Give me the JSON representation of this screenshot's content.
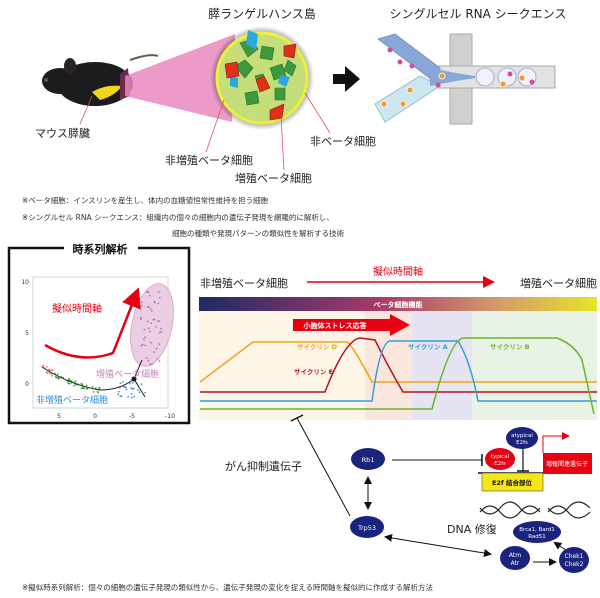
{
  "top": {
    "islet_title": "膵ランゲルハンス島",
    "scrnaseq_title": "シングルセル RNA シークエンス",
    "mouse_label": "マウス膵臓",
    "non_beta_label": "非ベータ細胞",
    "non_prolif_beta_label": "非増殖ベータ細胞",
    "prolif_beta_label": "増殖ベータ細胞"
  },
  "notes": [
    "※ベータ細胞：インスリンを産生し、体内の血糖値恒常性維持を担う細胞",
    "※シングルセル RNA シークエンス：組織内の個々の細胞内の遺伝子発現を網羅的に解析し、",
    "細胞の種類や発現パターンの類似性を解析する技術"
  ],
  "panel": {
    "title": "時系列解析",
    "pseudotime_label": "擬似時間軸",
    "prolif_label": "増殖ベータ細胞",
    "non_prolif_label": "非増殖ベータ細胞",
    "y_ticks": [
      "10",
      "5",
      "0"
    ],
    "x_ticks": [
      "5",
      "0",
      "-5",
      "-10"
    ]
  },
  "timeline": {
    "start_label": "非増殖ベータ細胞",
    "axis_label": "擬似時間軸",
    "end_label": "増殖ベータ細胞",
    "function_bar_label": "ベータ細胞機能",
    "er_stress_label": "小胞体ストレス応答",
    "cyclin_d": "サイクリン D",
    "cyclin_e": "サイクリン E",
    "cyclin_a": "サイクリン A",
    "cyclin_b": "サイクリン B",
    "colors": {
      "cyclin_d": "#f2a31b",
      "cyclin_e": "#b3121c",
      "cyclin_a": "#2fa0dc",
      "cyclin_b": "#6ab42d",
      "gradient_start": "#1f2a63",
      "gradient_mid": "#a63a6a",
      "gradient_end": "#e6e42a"
    }
  },
  "network": {
    "tumor_suppressor_label": "がん抑制遺伝子",
    "rb1": "Rb1",
    "trp53": "Trp53",
    "atypical_1": "atypical",
    "atypical_2": "E2fs",
    "typical_1": "typical",
    "typical_2": "E2fs",
    "e2f_site": "E2f 結合部位",
    "prolif_genes": "増殖関連遺伝子",
    "dna_repair": "DNA 修復",
    "brca_1": "Brca1, Bard1",
    "brca_2": "Rad51",
    "atm": "Atm",
    "atr": "Atr",
    "chek1": "Chek1",
    "chek2": "Chek2"
  },
  "footer": "※擬似時系列解析：個々の細胞の遺伝子発現の類似性から、遺伝子発現の変化を捉える時間軸を擬似的に作成する解析方法"
}
